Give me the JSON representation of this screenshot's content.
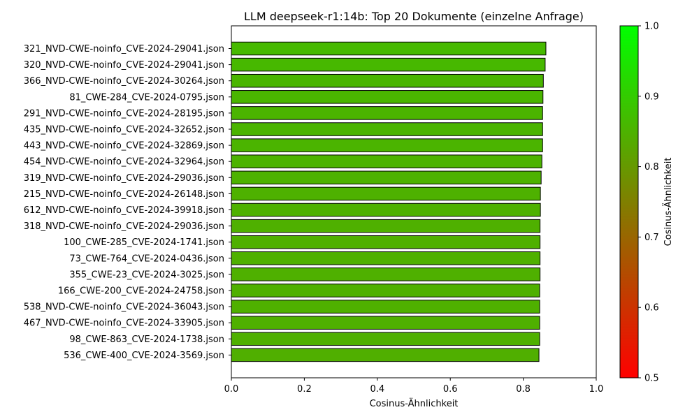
{
  "chart_data": {
    "type": "bar",
    "orientation": "horizontal",
    "title": "LLM deepseek-r1:14b: Top 20 Dokumente (einzelne Anfrage)",
    "xlabel": "Cosinus-Ähnlichkeit",
    "ylabel": "",
    "xlim": [
      0.0,
      1.0
    ],
    "x_ticks": [
      "0.0",
      "0.2",
      "0.4",
      "0.6",
      "0.8",
      "1.0"
    ],
    "categories": [
      "321_NVD-CWE-noinfo_CVE-2024-29041.json",
      "320_NVD-CWE-noinfo_CVE-2024-29041.json",
      "366_NVD-CWE-noinfo_CVE-2024-30264.json",
      "81_CWE-284_CVE-2024-0795.json",
      "291_NVD-CWE-noinfo_CVE-2024-28195.json",
      "435_NVD-CWE-noinfo_CVE-2024-32652.json",
      "443_NVD-CWE-noinfo_CVE-2024-32869.json",
      "454_NVD-CWE-noinfo_CVE-2024-32964.json",
      "319_NVD-CWE-noinfo_CVE-2024-29036.json",
      "215_NVD-CWE-noinfo_CVE-2024-26148.json",
      "612_NVD-CWE-noinfo_CVE-2024-39918.json",
      "318_NVD-CWE-noinfo_CVE-2024-29036.json",
      "100_CWE-285_CVE-2024-1741.json",
      "73_CWE-764_CVE-2024-0436.json",
      "355_CWE-23_CVE-2024-3025.json",
      "166_CWE-200_CVE-2024-24758.json",
      "538_NVD-CWE-noinfo_CVE-2024-36043.json",
      "467_NVD-CWE-noinfo_CVE-2024-33905.json",
      "98_CWE-863_CVE-2024-1738.json",
      "536_CWE-400_CVE-2024-3569.json"
    ],
    "values": [
      0.862,
      0.86,
      0.855,
      0.854,
      0.853,
      0.853,
      0.853,
      0.851,
      0.849,
      0.847,
      0.847,
      0.846,
      0.846,
      0.846,
      0.846,
      0.845,
      0.845,
      0.845,
      0.845,
      0.843
    ],
    "colorbar": {
      "label": "Cosinus-Ähnlichkeit",
      "range": [
        0.5,
        1.0
      ],
      "ticks": [
        "0.5",
        "0.6",
        "0.7",
        "0.8",
        "0.9",
        "1.0"
      ],
      "colors": [
        "#ff0000",
        "#00ff00"
      ]
    },
    "bar_edge_color": "#000000",
    "grid": false
  }
}
